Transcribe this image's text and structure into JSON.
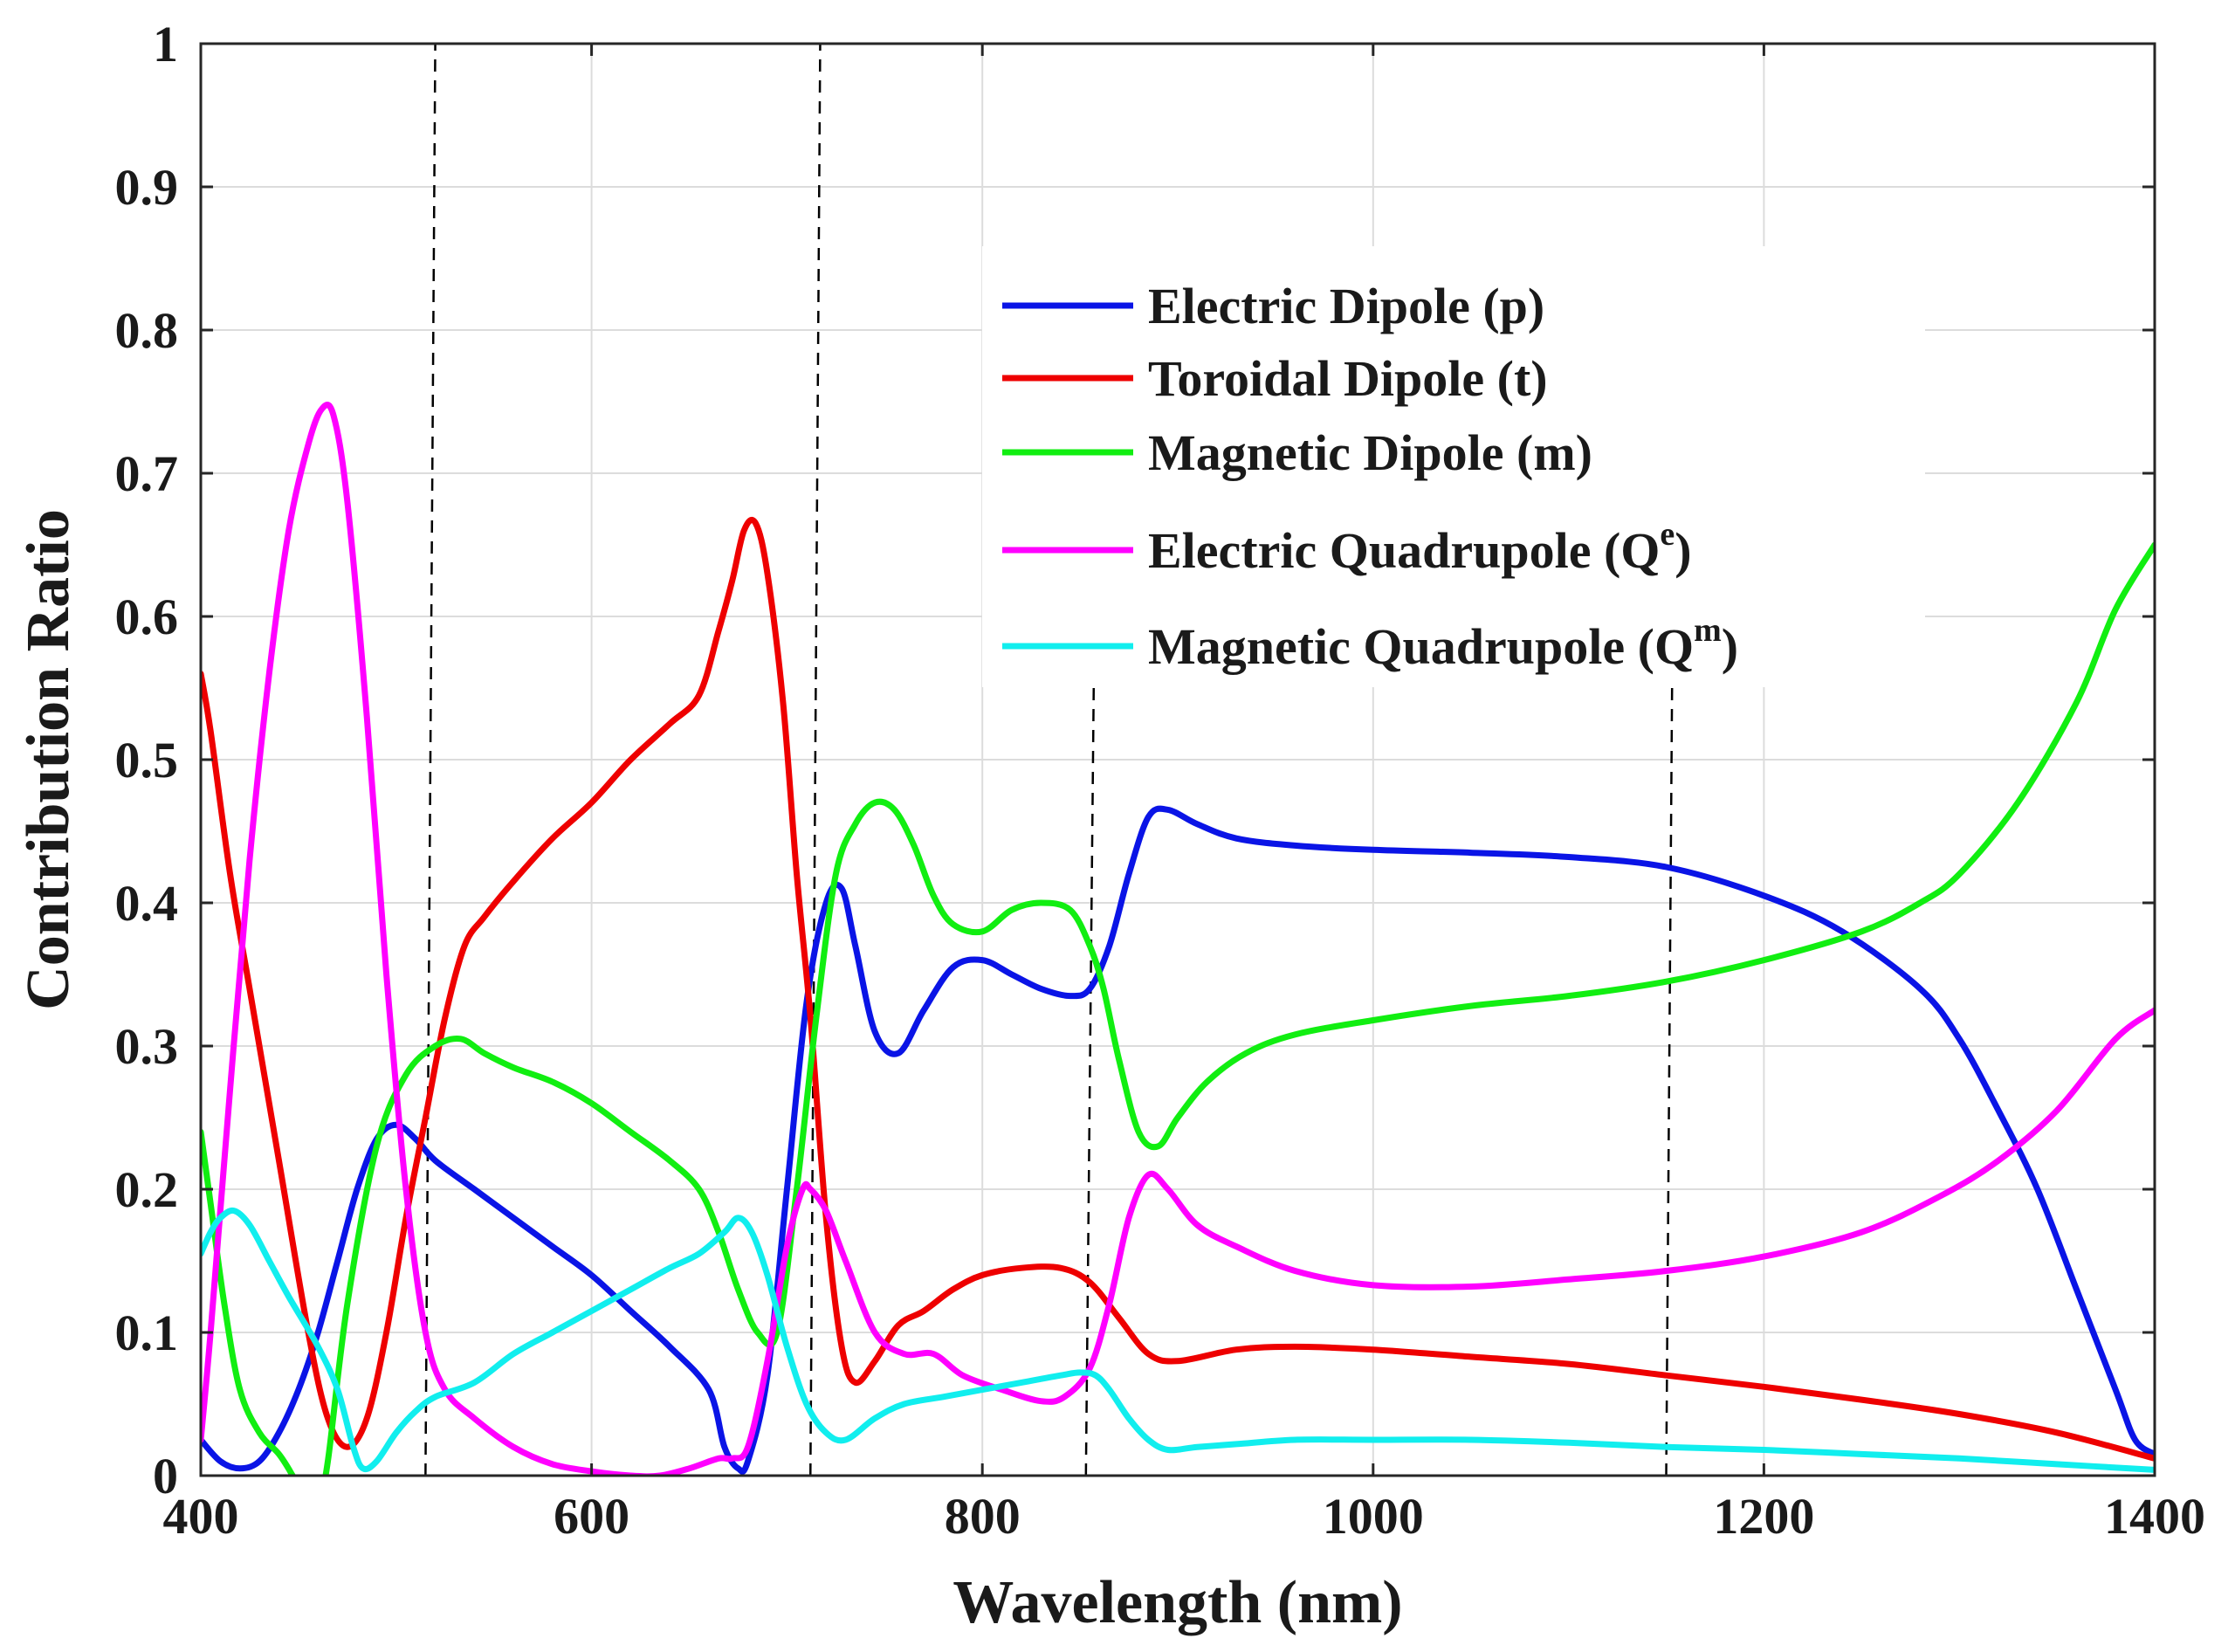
{
  "chart_data": {
    "type": "line",
    "title": "",
    "xlabel": "Wavelength (nm)",
    "ylabel": "Contribution Ratio",
    "xlim": [
      400,
      1400
    ],
    "ylim": [
      0,
      1
    ],
    "xticks": [
      400,
      600,
      800,
      1000,
      1200,
      1400
    ],
    "xtick_labels": [
      "400",
      "600",
      "800",
      "1000",
      "1200",
      "1400"
    ],
    "yticks": [
      0,
      0.1,
      0.2,
      0.3,
      0.4,
      0.5,
      0.6,
      0.7,
      0.8,
      0.9,
      1
    ],
    "ytick_labels": [
      "0",
      "0.1",
      "0.2",
      "0.3",
      "0.4",
      "0.5",
      "0.6",
      "0.7",
      "0.8",
      "0.9",
      "1"
    ],
    "grid": true,
    "legend_position": "top-right",
    "vertical_dashed_lines": [
      {
        "x_bottom": 515,
        "x_top": 520,
        "y_top": 1.0
      },
      {
        "x_bottom": 712,
        "x_top": 717,
        "y_top": 1.0
      },
      {
        "x_bottom": 853,
        "x_top": 857,
        "y_top": 0.55
      },
      {
        "x_bottom": 1150,
        "x_top": 1153,
        "y_top": 0.55
      }
    ],
    "series": [
      {
        "name": "Electric Dipole (p)",
        "legend_main": "Electric Dipole (p)",
        "legend_sup": "",
        "legend_suffix": "",
        "color": "#0a14e6",
        "x": [
          400,
          410,
          420,
          430,
          440,
          450,
          460,
          470,
          480,
          490,
          500,
          510,
          520,
          540,
          560,
          580,
          600,
          620,
          640,
          660,
          668,
          675,
          680,
          690,
          700,
          710,
          720,
          728,
          735,
          745,
          757,
          770,
          785,
          800,
          815,
          830,
          845,
          855,
          865,
          875,
          885,
          895,
          910,
          930,
          960,
          1000,
          1050,
          1100,
          1150,
          1200,
          1240,
          1280,
          1300,
          1320,
          1340,
          1360,
          1380,
          1390,
          1400
        ],
        "y": [
          0.025,
          0.01,
          0.005,
          0.01,
          0.03,
          0.06,
          0.1,
          0.15,
          0.2,
          0.235,
          0.245,
          0.235,
          0.22,
          0.2,
          0.18,
          0.16,
          0.14,
          0.115,
          0.09,
          0.06,
          0.02,
          0.005,
          0.01,
          0.07,
          0.2,
          0.33,
          0.4,
          0.41,
          0.37,
          0.31,
          0.295,
          0.325,
          0.355,
          0.36,
          0.35,
          0.34,
          0.335,
          0.34,
          0.37,
          0.42,
          0.46,
          0.465,
          0.455,
          0.445,
          0.44,
          0.437,
          0.435,
          0.432,
          0.425,
          0.405,
          0.38,
          0.34,
          0.305,
          0.255,
          0.2,
          0.13,
          0.06,
          0.025,
          0.015
        ]
      },
      {
        "name": "Toroidal Dipole (t)",
        "legend_main": "Toroidal Dipole (t)",
        "legend_sup": "",
        "legend_suffix": "",
        "color": "#ee0000",
        "x": [
          400,
          405,
          415,
          425,
          440,
          455,
          465,
          475,
          485,
          495,
          505,
          515,
          525,
          535,
          545,
          560,
          580,
          600,
          620,
          640,
          655,
          665,
          672,
          678,
          684,
          690,
          698,
          705,
          712,
          720,
          728,
          735,
          745,
          757,
          770,
          785,
          800,
          820,
          840,
          855,
          870,
          885,
          900,
          930,
          960,
          1000,
          1050,
          1100,
          1150,
          1200,
          1250,
          1300,
          1350,
          1400
        ],
        "y": [
          0.56,
          0.52,
          0.42,
          0.34,
          0.22,
          0.1,
          0.04,
          0.02,
          0.04,
          0.1,
          0.18,
          0.25,
          0.32,
          0.37,
          0.39,
          0.415,
          0.445,
          0.47,
          0.5,
          0.525,
          0.545,
          0.59,
          0.625,
          0.66,
          0.665,
          0.63,
          0.54,
          0.42,
          0.32,
          0.18,
          0.09,
          0.065,
          0.08,
          0.105,
          0.115,
          0.13,
          0.14,
          0.145,
          0.145,
          0.135,
          0.11,
          0.085,
          0.08,
          0.088,
          0.09,
          0.088,
          0.083,
          0.078,
          0.07,
          0.062,
          0.053,
          0.043,
          0.03,
          0.012
        ]
      },
      {
        "name": "Magnetic Dipole (m)",
        "legend_main": "Magnetic Dipole (m)",
        "legend_sup": "",
        "legend_suffix": "",
        "color": "#11ee11",
        "x": [
          400,
          405,
          412,
          420,
          430,
          440,
          447,
          455,
          460,
          465,
          475,
          490,
          505,
          520,
          533,
          545,
          560,
          580,
          600,
          620,
          640,
          655,
          665,
          675,
          685,
          695,
          705,
          715,
          725,
          735,
          745,
          755,
          765,
          775,
          785,
          800,
          815,
          830,
          845,
          855,
          862,
          870,
          880,
          890,
          900,
          915,
          935,
          960,
          1000,
          1050,
          1100,
          1150,
          1200,
          1250,
          1280,
          1300,
          1330,
          1360,
          1380,
          1400
        ],
        "y": [
          0.24,
          0.19,
          0.12,
          0.06,
          0.03,
          0.015,
          0.0,
          -0.02,
          -0.02,
          0.01,
          0.12,
          0.23,
          0.28,
          0.3,
          0.305,
          0.295,
          0.285,
          0.275,
          0.26,
          0.24,
          0.22,
          0.2,
          0.17,
          0.13,
          0.1,
          0.1,
          0.2,
          0.32,
          0.42,
          0.455,
          0.47,
          0.465,
          0.44,
          0.405,
          0.385,
          0.38,
          0.395,
          0.4,
          0.395,
          0.37,
          0.34,
          0.29,
          0.24,
          0.23,
          0.25,
          0.275,
          0.295,
          0.308,
          0.318,
          0.328,
          0.335,
          0.345,
          0.36,
          0.38,
          0.4,
          0.42,
          0.47,
          0.54,
          0.605,
          0.65
        ]
      },
      {
        "name": "Electric Quadrupole (Qe)",
        "legend_main": "Electric Quadrupole (Q",
        "legend_sup": "e",
        "legend_suffix": ")",
        "color": "#ff00ff",
        "x": [
          400,
          405,
          415,
          425,
          435,
          445,
          455,
          462,
          468,
          475,
          485,
          495,
          505,
          515,
          525,
          540,
          560,
          580,
          600,
          620,
          635,
          650,
          665,
          672,
          680,
          690,
          700,
          708,
          712,
          720,
          730,
          745,
          760,
          775,
          790,
          810,
          830,
          842,
          855,
          865,
          875,
          885,
          895,
          910,
          930,
          960,
          1000,
          1050,
          1100,
          1150,
          1200,
          1250,
          1290,
          1320,
          1350,
          1380,
          1400
        ],
        "y": [
          0.025,
          0.1,
          0.27,
          0.43,
          0.56,
          0.66,
          0.72,
          0.745,
          0.74,
          0.68,
          0.53,
          0.35,
          0.2,
          0.1,
          0.06,
          0.04,
          0.02,
          0.008,
          0.003,
          0.0,
          0.0,
          0.005,
          0.012,
          0.012,
          0.02,
          0.08,
          0.16,
          0.2,
          0.2,
          0.185,
          0.15,
          0.1,
          0.085,
          0.085,
          0.07,
          0.06,
          0.052,
          0.055,
          0.075,
          0.12,
          0.18,
          0.21,
          0.2,
          0.175,
          0.16,
          0.143,
          0.133,
          0.132,
          0.137,
          0.143,
          0.153,
          0.17,
          0.195,
          0.22,
          0.255,
          0.305,
          0.325
        ]
      },
      {
        "name": "Magnetic Quadrupole (Qm)",
        "legend_main": "Magnetic Quadrupole (Q",
        "legend_sup": "m",
        "legend_suffix": ")",
        "color": "#11eeee",
        "x": [
          400,
          405,
          410,
          417,
          425,
          435,
          445,
          460,
          470,
          478,
          483,
          490,
          500,
          510,
          520,
          540,
          560,
          580,
          600,
          620,
          640,
          655,
          668,
          675,
          682,
          690,
          700,
          710,
          720,
          730,
          745,
          760,
          780,
          800,
          820,
          840,
          850,
          858,
          865,
          875,
          885,
          895,
          910,
          930,
          960,
          1000,
          1050,
          1100,
          1150,
          1200,
          1250,
          1300,
          1350,
          1400
        ],
        "y": [
          0.155,
          0.17,
          0.18,
          0.185,
          0.175,
          0.15,
          0.125,
          0.09,
          0.06,
          0.02,
          0.005,
          0.01,
          0.03,
          0.045,
          0.055,
          0.065,
          0.085,
          0.1,
          0.115,
          0.13,
          0.145,
          0.155,
          0.17,
          0.18,
          0.17,
          0.14,
          0.09,
          0.05,
          0.03,
          0.025,
          0.04,
          0.05,
          0.055,
          0.06,
          0.065,
          0.07,
          0.072,
          0.07,
          0.06,
          0.04,
          0.025,
          0.018,
          0.02,
          0.022,
          0.025,
          0.025,
          0.025,
          0.023,
          0.02,
          0.018,
          0.015,
          0.012,
          0.008,
          0.004
        ]
      }
    ]
  }
}
